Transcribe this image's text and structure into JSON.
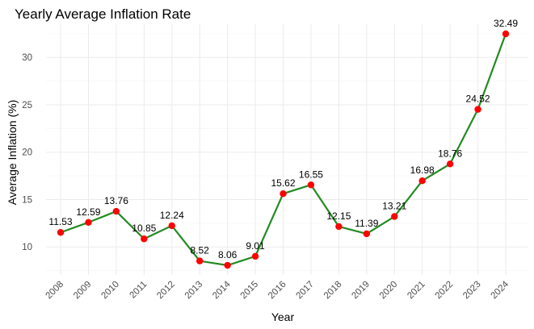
{
  "chart_data": {
    "type": "line",
    "title": "Yearly Average Inflation Rate",
    "xlabel": "Year",
    "ylabel": "Average Inflation (%)",
    "categories": [
      "2008",
      "2009",
      "2010",
      "2011",
      "2012",
      "2013",
      "2014",
      "2015",
      "2016",
      "2017",
      "2018",
      "2019",
      "2020",
      "2021",
      "2022",
      "2023",
      "2024"
    ],
    "values": [
      11.53,
      12.59,
      13.76,
      10.85,
      12.24,
      8.52,
      8.06,
      9.01,
      15.62,
      16.55,
      12.15,
      11.39,
      13.21,
      16.98,
      18.76,
      24.52,
      32.49
    ],
    "value_labels": [
      "11.53",
      "12.59",
      "13.76",
      "10.85",
      "12.24",
      "8.52",
      "8.06",
      "9.01",
      "15.62",
      "16.55",
      "12.15",
      "11.39",
      "13.21",
      "16.98",
      "18.76",
      "24.52",
      "32.49"
    ],
    "y_ticks": [
      10,
      15,
      20,
      25,
      30
    ],
    "y_tick_labels": [
      "10",
      "15",
      "20",
      "25",
      "30"
    ],
    "ylim": [
      7.04,
      33.51
    ],
    "grid": true,
    "legend": "none",
    "colors": {
      "line": "#228B22",
      "points": "#ff0000",
      "grid": "#ebebeb"
    }
  }
}
